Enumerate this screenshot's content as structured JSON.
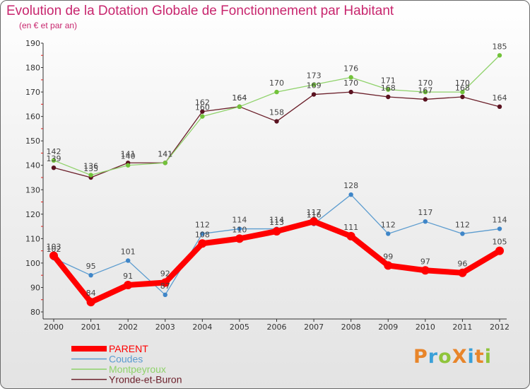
{
  "header": {
    "title": "Evolution de la Dotation Globale de Fonctionnement par Habitant",
    "subtitle": "(en € et par an)"
  },
  "logo": {
    "text": "ProXiti",
    "colors": [
      "#e8852a",
      "#3aa0d8",
      "#8fc43b",
      "#e8852a",
      "#3aa0d8",
      "#e8852a",
      "#8fc43b"
    ]
  },
  "chart_data": {
    "type": "line",
    "x": [
      "2000",
      "2001",
      "2002",
      "2003",
      "2004",
      "2005",
      "2006",
      "2007",
      "2008",
      "2009",
      "2010",
      "2011",
      "2012"
    ],
    "ylim": [
      80,
      190
    ],
    "yticks": [
      80,
      90,
      100,
      110,
      120,
      130,
      140,
      150,
      160,
      170,
      180,
      190
    ],
    "grid": false,
    "legend_position": "bottom-left",
    "series": [
      {
        "name": "Yronde-et-Buron",
        "color": "#6b1f2a",
        "marker": "#5a1220",
        "values": [
          139,
          135,
          141,
          141,
          162,
          164,
          158,
          169,
          170,
          168,
          167,
          168,
          164
        ]
      },
      {
        "name": "Montpeyroux",
        "color": "#8fd26a",
        "marker": "#72c23a",
        "values": [
          142,
          136,
          140,
          141,
          160,
          164,
          170,
          173,
          176,
          171,
          170,
          170,
          185
        ]
      },
      {
        "name": "Coudes",
        "color": "#5c9ccf",
        "marker": "#3f86c8",
        "values": [
          102,
          95,
          101,
          87,
          112,
          114,
          114,
          116,
          128,
          112,
          117,
          112,
          114
        ]
      },
      {
        "name": "PARENT",
        "color": "#ff0000",
        "marker": "#ff0000",
        "values": [
          103,
          84,
          91,
          92,
          108,
          110,
          113,
          117,
          111,
          99,
          97,
          96,
          105
        ]
      }
    ],
    "legend_order": [
      "PARENT",
      "Coudes",
      "Montpeyroux",
      "Yronde-et-Buron"
    ]
  }
}
